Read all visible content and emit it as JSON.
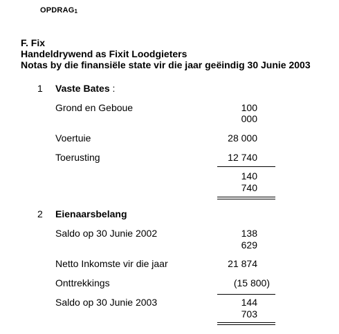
{
  "assignment": {
    "word": "OPDRAG",
    "number": "1"
  },
  "heading": {
    "line1": "F. Fix",
    "line2": "Handeldrywend as Fixit Loodgieters",
    "line3": "Notas by die finansiële state vir die jaar geëindig 30 Junie 2003"
  },
  "note1": {
    "number": "1",
    "title": "Vaste Bates",
    "title_suffix": " :",
    "items": [
      {
        "label": "Grond en Geboue",
        "value_line1": "100",
        "value_line2": "000"
      },
      {
        "label": "Voertuie",
        "value": "28 000"
      },
      {
        "label": "Toerusting",
        "value": "12 740"
      }
    ],
    "total_line1": "140",
    "total_line2": "740"
  },
  "note2": {
    "number": "2",
    "title": "Eienaarsbelang",
    "items": [
      {
        "label": "Saldo op 30 Junie 2002",
        "value_line1": "138",
        "value_line2": "629"
      },
      {
        "label": "Netto Inkomste vir die jaar",
        "value": "21 874"
      },
      {
        "label": "Onttrekkings",
        "value": "(15 800)"
      },
      {
        "label": "Saldo op 30 Junie 2003",
        "value_line1": "144",
        "value_line2": "703"
      }
    ]
  }
}
